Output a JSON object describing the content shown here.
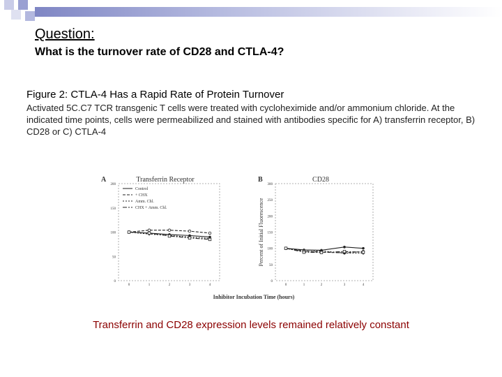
{
  "question": {
    "label": "Question:",
    "text": "What is the turnover rate of CD28 and CTLA-4?"
  },
  "figure": {
    "title": "Figure 2:  CTLA-4 Has a Rapid Rate of Protein Turnover",
    "caption": "Activated 5C.C7 TCR transgenic T cells were treated with cycloheximide and/or ammonium chloride.  At the indicated time points, cells were permeabilized and stained with antibodies specific for A) transferrin receptor, B) CD28 or C)  CTLA-4"
  },
  "conclusion": "Transferrin and CD28 expression levels remained relatively constant",
  "colors": {
    "conclusion": "#8b0000",
    "banner": "#7f86c4"
  },
  "chart_data": [
    {
      "type": "line",
      "panel": "A",
      "title": "Transferrin Receptor",
      "x": [
        0,
        1,
        2,
        3,
        4
      ],
      "x_ticks": [
        "0",
        "1",
        "2",
        "3",
        "4"
      ],
      "y_ticks": [
        "0",
        "50",
        "100",
        "150",
        "200"
      ],
      "ylim": [
        0,
        200
      ],
      "series": [
        {
          "name": "Control",
          "values": [
            100,
            98,
            95,
            93,
            90
          ]
        },
        {
          "name": "+ CHX",
          "values": [
            100,
            104,
            104,
            102,
            98
          ]
        },
        {
          "name": "Amm. Chl.",
          "values": [
            100,
            96,
            93,
            90,
            87
          ]
        },
        {
          "name": "CHX + Amm. Chl.",
          "values": [
            100,
            98,
            92,
            88,
            85
          ]
        }
      ]
    },
    {
      "type": "line",
      "panel": "B",
      "title": "CD28",
      "ylabel": "Percent of Initial Fluorescence",
      "x": [
        0,
        1,
        2,
        3,
        4
      ],
      "x_ticks": [
        "0",
        "1",
        "2",
        "3",
        "4"
      ],
      "y_ticks": [
        "0",
        "50",
        "100",
        "150",
        "200",
        "250",
        "300"
      ],
      "ylim": [
        0,
        300
      ],
      "series": [
        {
          "name": "Control",
          "values": [
            100,
            95,
            94,
            104,
            100
          ]
        },
        {
          "name": "+ CHX",
          "values": [
            100,
            92,
            88,
            86,
            90
          ]
        },
        {
          "name": "Amm. Chl.",
          "values": [
            100,
            90,
            92,
            85,
            85
          ]
        },
        {
          "name": "CHX + Amm. Chl.",
          "values": [
            100,
            88,
            87,
            90,
            88
          ]
        }
      ]
    }
  ],
  "shared_xlabel": "Inhibitor Incubation Time (hours)"
}
